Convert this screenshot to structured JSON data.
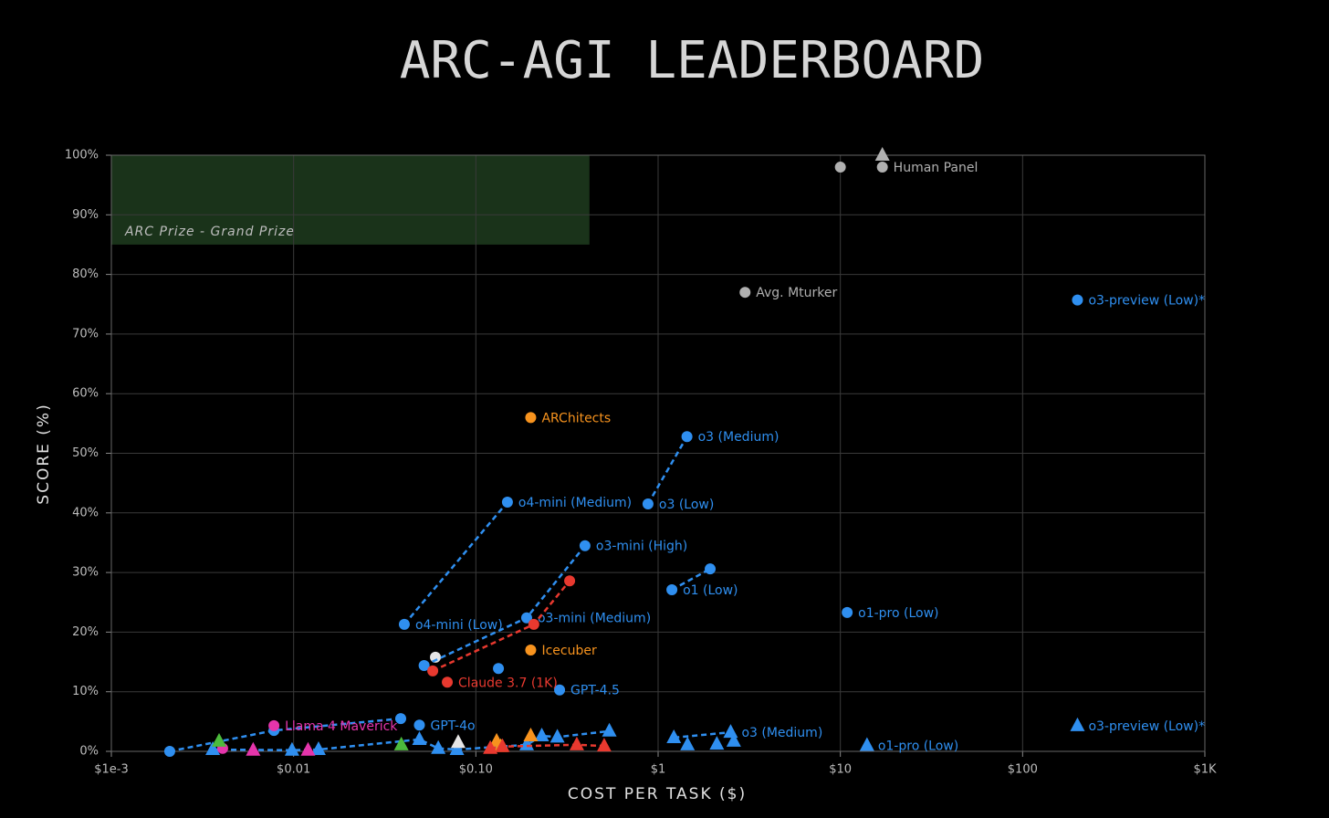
{
  "chart_data": {
    "type": "scatter",
    "title": "ARC-AGI LEADERBOARD",
    "x_label": "COST PER TASK ($)",
    "y_label": "SCORE (%)",
    "xscale": "log",
    "grid": true,
    "xlim": [
      0.001,
      1000
    ],
    "ylim": [
      0,
      100
    ],
    "xticks": [
      {
        "value": 0.001,
        "label": "$1e-3"
      },
      {
        "value": 0.01,
        "label": "$0.01"
      },
      {
        "value": 0.1,
        "label": "$0.10"
      },
      {
        "value": 1,
        "label": "$1"
      },
      {
        "value": 10,
        "label": "$10"
      },
      {
        "value": 100,
        "label": "$100"
      },
      {
        "value": 1000,
        "label": "$1K"
      }
    ],
    "yticks": [
      {
        "value": 0,
        "label": "0%"
      },
      {
        "value": 10,
        "label": "10%"
      },
      {
        "value": 20,
        "label": "20%"
      },
      {
        "value": 30,
        "label": "30%"
      },
      {
        "value": 40,
        "label": "40%"
      },
      {
        "value": 50,
        "label": "50%"
      },
      {
        "value": 60,
        "label": "60%"
      },
      {
        "value": 70,
        "label": "70%"
      },
      {
        "value": 80,
        "label": "80%"
      },
      {
        "value": 90,
        "label": "90%"
      },
      {
        "value": 100,
        "label": "100%"
      }
    ],
    "region": {
      "label": "ARC Prize - Grand Prize",
      "xlim": [
        0.001,
        0.42
      ],
      "ylim": [
        85,
        100
      ],
      "color": "#1a331a"
    },
    "series": [
      {
        "color": "#2f8ff0",
        "marker": "triangle",
        "dashed": true,
        "x": [
          0.0036,
          0.0098,
          0.0137,
          0.049,
          0.0622,
          0.0787,
          0.19,
          0.23,
          0.28,
          0.54
        ],
        "y": [
          0.3,
          0.2,
          0.3,
          2.0,
          0.5,
          0.3,
          1.1,
          2.6,
          2.4,
          3.4
        ]
      },
      {
        "color": "#2f8ff0",
        "marker": "circle",
        "dashed": true,
        "x": [
          0.00209,
          0.0078,
          0.0387
        ],
        "y": [
          0,
          3.5,
          5.5
        ]
      },
      {
        "color": "#b0b0b0",
        "marker": "circle",
        "dashed": false,
        "x": [
          10,
          17
        ],
        "y": [
          98,
          98
        ],
        "labels": [
          null,
          "Human Panel"
        ]
      },
      {
        "color": "#b0b0b0",
        "marker": "triangle",
        "dashed": false,
        "x": [
          17
        ],
        "y": [
          100
        ]
      },
      {
        "color": "#b0b0b0",
        "marker": "circle",
        "dashed": false,
        "x": [
          3
        ],
        "y": [
          77
        ],
        "labels": [
          "Avg. Mturker"
        ]
      },
      {
        "color": "#e6e6e6",
        "marker": "circle",
        "dashed": false,
        "x": [
          0.06
        ],
        "y": [
          15.8
        ]
      },
      {
        "color": "#e6e6e6",
        "marker": "triangle",
        "dashed": false,
        "x": [
          0.08
        ],
        "y": [
          1.5
        ]
      },
      {
        "color": "#f7931e",
        "marker": "circle",
        "dashed": false,
        "x": [
          0.2,
          0.2
        ],
        "y": [
          56,
          17
        ],
        "labels": [
          "ARChitects",
          "Icecuber"
        ]
      },
      {
        "color": "#f7931e",
        "marker": "triangle",
        "dashed": false,
        "x": [
          0.13,
          0.137,
          0.2
        ],
        "y": [
          1.7,
          0.8,
          2.6
        ]
      },
      {
        "color": "#2f8ff0",
        "marker": "circle",
        "dashed": false,
        "x": [
          200
        ],
        "y": [
          75.7
        ],
        "labels": [
          "o3-preview (Low)*"
        ]
      },
      {
        "color": "#2f8ff0",
        "marker": "triangle",
        "dashed": false,
        "x": [
          200
        ],
        "y": [
          4.3
        ],
        "labels": [
          "o3-preview (Low)*"
        ]
      },
      {
        "color": "#2f8ff0",
        "marker": "circle",
        "dashed": true,
        "x": [
          0.88,
          1.44
        ],
        "y": [
          41.5,
          52.8
        ],
        "labels": [
          "o3 (Low)",
          "o3 (Medium)"
        ]
      },
      {
        "color": "#2f8ff0",
        "marker": "triangle",
        "dashed": true,
        "x": [
          1.22,
          2.5
        ],
        "y": [
          2.3,
          3.2
        ],
        "labels": [
          null,
          "o3 (Medium)"
        ]
      },
      {
        "color": "#2f8ff0",
        "marker": "triangle",
        "dashed": false,
        "x": [
          1.45,
          2.1,
          2.6
        ],
        "y": [
          1.1,
          1.2,
          1.7
        ]
      },
      {
        "color": "#2f8ff0",
        "marker": "circle",
        "dashed": true,
        "x": [
          1.19,
          1.93
        ],
        "y": [
          27.1,
          30.6
        ],
        "labels": [
          "o1 (Low)",
          null
        ]
      },
      {
        "color": "#2f8ff0",
        "marker": "circle",
        "dashed": false,
        "x": [
          10.9
        ],
        "y": [
          23.3
        ],
        "labels": [
          "o1-pro (Low)"
        ]
      },
      {
        "color": "#2f8ff0",
        "marker": "triangle",
        "dashed": false,
        "x": [
          14
        ],
        "y": [
          1.0
        ],
        "labels": [
          "o1-pro (Low)"
        ]
      },
      {
        "color": "#2f8ff0",
        "marker": "circle",
        "dashed": true,
        "x": [
          0.0405,
          0.149
        ],
        "y": [
          21.3,
          41.8
        ],
        "labels": [
          "o4-mini (Low)",
          "o4-mini (Medium)"
        ]
      },
      {
        "color": "#2f8ff0",
        "marker": "circle",
        "dashed": true,
        "x": [
          0.052,
          0.19,
          0.397
        ],
        "y": [
          14.4,
          22.4,
          34.5
        ],
        "labels": [
          null,
          "o3-mini (Medium)",
          "o3-mini (High)"
        ]
      },
      {
        "color": "#2f8ff0",
        "marker": "circle",
        "dashed": false,
        "x": [
          0.288,
          0.049,
          0.133
        ],
        "y": [
          10.3,
          4.4,
          13.9
        ],
        "labels": [
          "GPT-4.5",
          "GPT-4o",
          null
        ]
      },
      {
        "color": "#e8392f",
        "marker": "circle",
        "dashed": true,
        "x": [
          0.058,
          0.208,
          0.327
        ],
        "y": [
          13.5,
          21.3,
          28.6
        ]
      },
      {
        "color": "#e8392f",
        "marker": "circle",
        "dashed": false,
        "x": [
          0.0697
        ],
        "y": [
          11.6
        ],
        "labels": [
          "Claude 3.7 (1K)"
        ]
      },
      {
        "color": "#e8392f",
        "marker": "triangle",
        "dashed": true,
        "x": [
          0.12,
          0.14,
          0.358,
          0.506
        ],
        "y": [
          0.5,
          0.8,
          1.1,
          0.9
        ]
      },
      {
        "color": "#e535ab",
        "marker": "circle",
        "dashed": false,
        "x": [
          0.0078,
          0.00408
        ],
        "y": [
          4.3,
          0.5
        ],
        "labels": [
          "Llama 4 Maverick",
          null
        ]
      },
      {
        "color": "#e535ab",
        "marker": "triangle",
        "dashed": false,
        "x": [
          0.006,
          0.012
        ],
        "y": [
          0.2,
          0.2
        ]
      },
      {
        "color": "#4cbb3c",
        "marker": "triangle",
        "dashed": false,
        "x": [
          0.0039,
          0.039
        ],
        "y": [
          1.7,
          1.1
        ]
      }
    ]
  }
}
